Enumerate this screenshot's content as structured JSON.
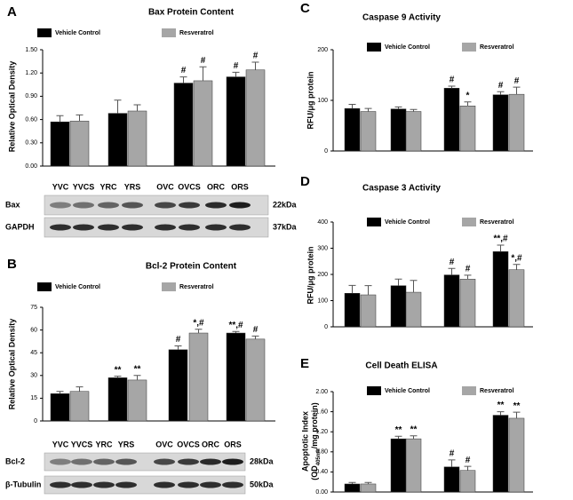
{
  "chart_data": [
    {
      "type": "bar",
      "panel_label": "A",
      "title": "Bax Protein Content",
      "y_label": "Relative Optical Density",
      "categories": [
        null,
        null,
        null,
        null
      ],
      "series": [
        {
          "name": "Vehicle Control",
          "color": "#000000",
          "values": [
            0.57,
            0.68,
            1.07,
            1.15
          ],
          "error": [
            0.08,
            0.17,
            0.08,
            0.06
          ],
          "annotations": [
            null,
            null,
            "#",
            "#"
          ]
        },
        {
          "name": "Resveratrol",
          "color": "#a6a6a6",
          "values": [
            0.58,
            0.71,
            1.1,
            1.24
          ],
          "error": [
            0.08,
            0.08,
            0.18,
            0.1
          ],
          "annotations": [
            null,
            null,
            "#",
            "#"
          ]
        }
      ],
      "ylim": [
        0,
        1.5
      ],
      "yticks": [
        {
          "value": 0,
          "label": "0.00"
        },
        {
          "value": 0.3,
          "label": "0.30"
        },
        {
          "value": 0.6,
          "label": "0.60"
        },
        {
          "value": 0.9,
          "label": "0.90"
        },
        {
          "value": 1.2,
          "label": "1.20"
        },
        {
          "value": 1.5,
          "label": "1.50"
        }
      ],
      "blot": {
        "lanes": [
          "YVC",
          "YVCS",
          "YRC",
          "YRS",
          "OVC",
          "OVCS",
          "ORC",
          "ORS"
        ],
        "rows": [
          {
            "name": "Bax",
            "size": "22kDa"
          },
          {
            "name": "GAPDH",
            "size": "37kDa"
          }
        ]
      }
    },
    {
      "type": "bar",
      "panel_label": "B",
      "title": "Bcl-2 Protein Content",
      "y_label": "Relative Optical Density",
      "categories": [
        null,
        null,
        null,
        null
      ],
      "series": [
        {
          "name": "Vehicle Control",
          "color": "#000000",
          "values": [
            18,
            28.5,
            47,
            58
          ],
          "error": [
            1.5,
            1,
            2.5,
            1
          ],
          "annotations": [
            null,
            "**",
            "#",
            "**,#"
          ]
        },
        {
          "name": "Resveratrol",
          "color": "#a6a6a6",
          "values": [
            19.5,
            27,
            58,
            54
          ],
          "error": [
            3,
            3,
            2.5,
            2
          ],
          "annotations": [
            null,
            "**",
            "*,#",
            "#"
          ]
        }
      ],
      "ylim": [
        0,
        75
      ],
      "yticks": [
        0,
        15,
        30,
        45,
        60,
        75
      ],
      "blot": {
        "lanes": [
          "YVC",
          "YVCS",
          "YRC",
          "YRS",
          "OVC",
          "OVCS",
          "ORC",
          "ORS"
        ],
        "rows": [
          {
            "name": "Bcl-2",
            "size": "28kDa"
          },
          {
            "name": "β-Tubulin",
            "size": "50kDa"
          }
        ]
      }
    },
    {
      "type": "bar",
      "panel_label": "C",
      "title": "Caspase 9 Activity",
      "y_label": "RFU/μg protein",
      "categories": [
        null,
        null,
        null,
        null
      ],
      "series": [
        {
          "name": "Vehicle Control",
          "color": "#000000",
          "values": [
            84,
            83,
            124,
            111
          ],
          "error": [
            8,
            4,
            4,
            6
          ],
          "annotations": [
            null,
            null,
            "#",
            "#"
          ]
        },
        {
          "name": "Resveratrol",
          "color": "#a6a6a6",
          "values": [
            78,
            78,
            89,
            112
          ],
          "error": [
            6,
            4,
            8,
            14
          ],
          "annotations": [
            null,
            null,
            "*",
            "#"
          ]
        }
      ],
      "ylim": [
        0,
        200
      ],
      "yticks": [
        0,
        100,
        200
      ]
    },
    {
      "type": "bar",
      "panel_label": "D",
      "title": "Caspase 3 Activity",
      "y_label": "RFU/μg protein",
      "categories": [
        null,
        null,
        null,
        null
      ],
      "series": [
        {
          "name": "Vehicle Control",
          "color": "#000000",
          "values": [
            128,
            157,
            198,
            287
          ],
          "error": [
            30,
            25,
            25,
            25
          ],
          "annotations": [
            null,
            null,
            "#",
            "**,#"
          ]
        },
        {
          "name": "Resveratrol",
          "color": "#a6a6a6",
          "values": [
            122,
            132,
            182,
            218
          ],
          "error": [
            35,
            45,
            15,
            20
          ],
          "annotations": [
            null,
            null,
            "#",
            "*,#"
          ]
        }
      ],
      "ylim": [
        0,
        400
      ],
      "yticks": [
        0,
        100,
        200,
        300,
        400
      ]
    },
    {
      "type": "bar",
      "panel_label": "E",
      "title": "Cell Death ELISA",
      "y_label": [
        "Apoptotic Index",
        "(OD",
        "405nm",
        "/mg protein)"
      ],
      "categories": [
        null,
        null,
        null,
        null
      ],
      "series": [
        {
          "name": "Vehicle Control",
          "color": "#000000",
          "values": [
            0.16,
            1.06,
            0.5,
            1.53
          ],
          "error": [
            0.03,
            0.05,
            0.14,
            0.07
          ],
          "annotations": [
            null,
            "**",
            "#",
            "**"
          ]
        },
        {
          "name": "Resveratrol",
          "color": "#a6a6a6",
          "values": [
            0.16,
            1.06,
            0.43,
            1.47
          ],
          "error": [
            0.03,
            0.06,
            0.08,
            0.12
          ],
          "annotations": [
            null,
            "**",
            "#",
            "**"
          ]
        }
      ],
      "ylim": [
        0,
        2
      ],
      "yticks": [
        {
          "value": 0,
          "label": "0.00"
        },
        {
          "value": 0.4,
          "label": "0.40"
        },
        {
          "value": 0.8,
          "label": "0.80"
        },
        {
          "value": 1.2,
          "label": "1.20"
        },
        {
          "value": 1.6,
          "label": "1.60"
        },
        {
          "value": 2,
          "label": "2.00"
        }
      ]
    }
  ]
}
